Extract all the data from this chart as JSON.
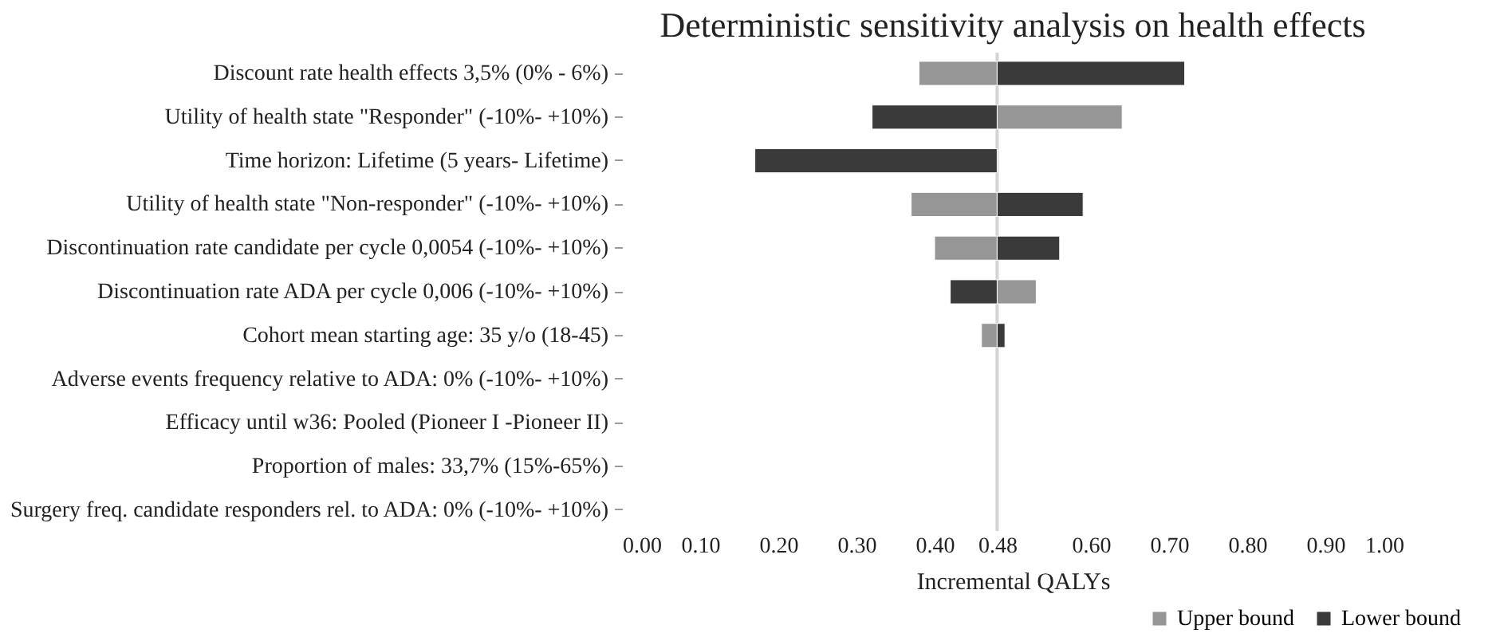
{
  "chart_data": {
    "type": "bar",
    "orientation": "horizontal",
    "title": "Deterministic sensitivity analysis on health effects",
    "xlabel": "Incremental QALYs",
    "categories": [
      "Discount rate health effects 3,5% (0% - 6%)",
      "Utility of health state \"Responder\" (-10%- +10%)",
      "Time horizon: Lifetime (5 years- Lifetime)",
      "Utility of health state \"Non-responder\" (-10%- +10%)",
      "Discontinuation rate candidate per cycle 0,0054 (-10%- +10%)",
      "Discontinuation rate ADA per cycle 0,006 (-10%- +10%)",
      "Cohort mean starting age: 35 y/o (18-45)",
      "Adverse events frequency relative to ADA: 0% (-10%- +10%)",
      "Efficacy until w36: Pooled (Pioneer I -Pioneer II)",
      "Proportion of males: 33,7% (15%-65%)",
      "Surgery freq. candidate responders rel. to ADA: 0% (-10%- +10%)"
    ],
    "series": [
      {
        "name": "Upper bound",
        "color": "#969696",
        "base": [
          0.48,
          0.48,
          null,
          0.48,
          0.48,
          0.48,
          0.48,
          null,
          null,
          null,
          null
        ],
        "values": [
          -0.1,
          0.16,
          null,
          -0.11,
          -0.08,
          0.05,
          -0.02,
          null,
          null,
          null,
          null
        ]
      },
      {
        "name": "Lower bound",
        "color": "#3a3a3a",
        "base": [
          0.48,
          0.48,
          0.48,
          0.48,
          0.48,
          0.48,
          0.48,
          null,
          null,
          null,
          null
        ],
        "values": [
          0.24,
          -0.16,
          -0.31,
          0.11,
          0.08,
          -0.06,
          0.01,
          null,
          null,
          null,
          null
        ]
      }
    ],
    "xlim": [
      0,
      1
    ],
    "xticks": [
      {
        "value": 0,
        "label": "0.00"
      },
      {
        "value": 0.1,
        "label": "0.10"
      },
      {
        "value": 0.2,
        "label": "0.20"
      },
      {
        "value": 0.3,
        "label": "0.30"
      },
      {
        "value": 0.4,
        "label": "0.40"
      },
      0.48,
      {
        "value": 0.6,
        "label": "0.60"
      },
      {
        "value": 0.7,
        "label": "0.70"
      },
      {
        "value": 0.8,
        "label": "0.80"
      },
      {
        "value": 0.9,
        "label": "0.90"
      },
      {
        "value": 1,
        "label": "1.00"
      }
    ],
    "ref_lines": [
      {
        "axis": "x",
        "value": 0.48,
        "color": "#d4d4d4"
      }
    ],
    "grid": false,
    "legend": "bottom right"
  }
}
